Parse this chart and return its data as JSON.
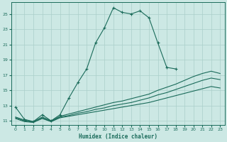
{
  "xlabel": "Humidex (Indice chaleur)",
  "bg_color": "#cce8e4",
  "grid_color": "#aacfca",
  "line_color": "#1a6b5a",
  "xlim": [
    -0.5,
    23.5
  ],
  "ylim": [
    10.5,
    26.5
  ],
  "yticks": [
    11,
    13,
    15,
    17,
    19,
    21,
    23,
    25
  ],
  "xticks": [
    0,
    1,
    2,
    3,
    4,
    5,
    6,
    7,
    8,
    9,
    10,
    11,
    12,
    13,
    14,
    15,
    16,
    17,
    18,
    19,
    20,
    21,
    22,
    23
  ],
  "main_x": [
    0,
    1,
    2,
    3,
    4,
    5,
    6,
    7,
    8,
    9,
    10,
    11,
    12,
    13,
    14,
    15,
    16,
    17,
    18
  ],
  "main_y": [
    12.8,
    11.2,
    10.9,
    11.8,
    11.0,
    11.8,
    14.0,
    16.0,
    17.8,
    21.2,
    23.2,
    25.8,
    25.2,
    25.0,
    25.4,
    24.5,
    21.2,
    18.0,
    17.8
  ],
  "line2_x": [
    0,
    1,
    2,
    3,
    4,
    5,
    6,
    7,
    8,
    9,
    10,
    11,
    12,
    13,
    14,
    15,
    16,
    17,
    18,
    19,
    20,
    21,
    22,
    23
  ],
  "line2_y": [
    11.5,
    11.1,
    10.9,
    11.5,
    11.0,
    11.6,
    11.9,
    12.2,
    12.5,
    12.8,
    13.1,
    13.4,
    13.6,
    13.9,
    14.2,
    14.5,
    15.0,
    15.4,
    15.8,
    16.3,
    16.8,
    17.2,
    17.5,
    17.2
  ],
  "line3_x": [
    0,
    1,
    2,
    3,
    4,
    5,
    6,
    7,
    8,
    9,
    10,
    11,
    12,
    13,
    14,
    15,
    16,
    17,
    18,
    19,
    20,
    21,
    22,
    23
  ],
  "line3_y": [
    11.4,
    11.0,
    10.8,
    11.4,
    10.9,
    11.5,
    11.7,
    12.0,
    12.2,
    12.5,
    12.7,
    13.0,
    13.2,
    13.4,
    13.7,
    14.0,
    14.4,
    14.7,
    15.1,
    15.5,
    15.9,
    16.3,
    16.6,
    16.4
  ],
  "line4_x": [
    0,
    1,
    2,
    3,
    4,
    5,
    6,
    7,
    8,
    9,
    10,
    11,
    12,
    13,
    14,
    15,
    16,
    17,
    18,
    19,
    20,
    21,
    22,
    23
  ],
  "line4_y": [
    11.3,
    10.9,
    10.8,
    11.3,
    10.9,
    11.4,
    11.6,
    11.8,
    12.0,
    12.2,
    12.4,
    12.6,
    12.8,
    13.0,
    13.2,
    13.4,
    13.7,
    14.0,
    14.3,
    14.6,
    14.9,
    15.2,
    15.5,
    15.3
  ]
}
